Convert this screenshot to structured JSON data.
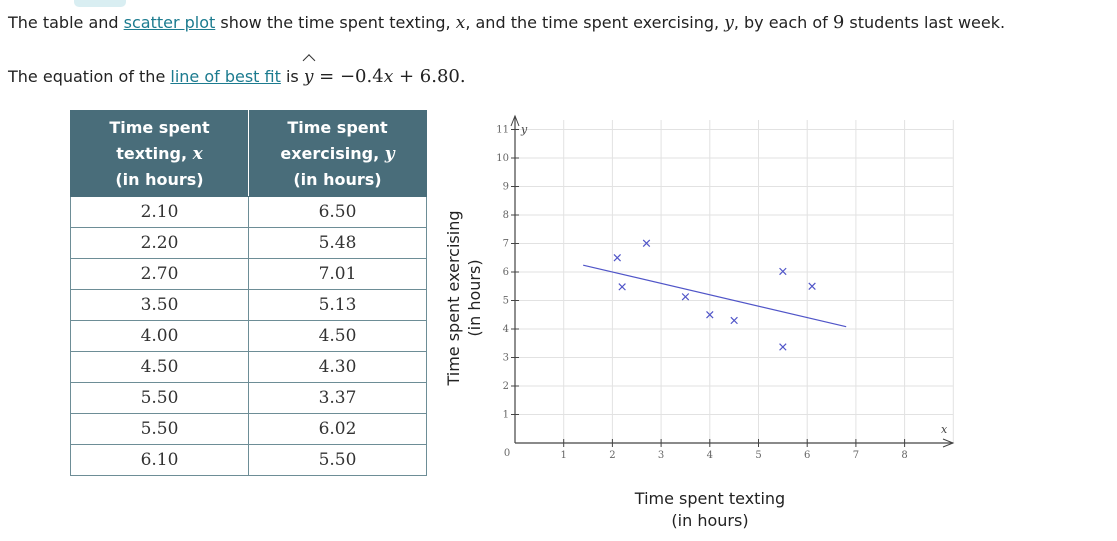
{
  "intro": {
    "p1_a": "The table and ",
    "p1_link": "scatter plot",
    "p1_b": " show the time spent texting, ",
    "p1_x": "x",
    "p1_c": ", and the time spent exercising, ",
    "p1_y": "y",
    "p1_d": ", by each of ",
    "p1_n": "9",
    "p1_e": " students last week.",
    "p2_a": "The equation of the ",
    "p2_link": "line of best fit",
    "p2_b": " is ",
    "p2_yhat": "y",
    "p2_eq": " = −0.4",
    "p2_x": "x",
    "p2_const": " + 6.80",
    "p2_end": "."
  },
  "table": {
    "col1": {
      "l1": "Time spent",
      "l2": "texting, ",
      "var": "x",
      "l3": "(in hours)"
    },
    "col2": {
      "l1": "Time spent",
      "l2": "exercising, ",
      "var": "y",
      "l3": "(in hours)"
    },
    "rows": [
      [
        "2.10",
        "6.50"
      ],
      [
        "2.20",
        "5.48"
      ],
      [
        "2.70",
        "7.01"
      ],
      [
        "3.50",
        "5.13"
      ],
      [
        "4.00",
        "4.50"
      ],
      [
        "4.50",
        "4.30"
      ],
      [
        "5.50",
        "3.37"
      ],
      [
        "5.50",
        "6.02"
      ],
      [
        "6.10",
        "5.50"
      ]
    ]
  },
  "chart_data": {
    "type": "scatter",
    "xlabel": "Time spent texting\n(in hours)",
    "ylabel": "Time spent exercising\n(in hours)",
    "x_axis_letter": "x",
    "y_axis_letter": "y",
    "origin_label": "0",
    "xlim": [
      0,
      9
    ],
    "ylim": [
      0,
      11
    ],
    "xticks": [
      1,
      2,
      3,
      4,
      5,
      6,
      7,
      8
    ],
    "yticks": [
      1,
      2,
      3,
      4,
      5,
      6,
      7,
      8,
      9,
      10,
      11
    ],
    "grid": true,
    "series": [
      {
        "x": [
          2.1,
          2.2,
          2.7,
          3.5,
          4.0,
          4.5,
          5.5,
          5.5,
          6.1
        ],
        "y": [
          6.5,
          5.48,
          7.01,
          5.13,
          4.5,
          4.3,
          3.37,
          6.02,
          5.5
        ]
      }
    ],
    "best_fit": {
      "slope": -0.4,
      "intercept": 6.8,
      "x_from": 1.4,
      "x_to": 6.8
    },
    "colors": {
      "points": "#5055c8",
      "line": "#5055c8",
      "grid": "#e2e2e2",
      "axes": "#444444"
    }
  }
}
